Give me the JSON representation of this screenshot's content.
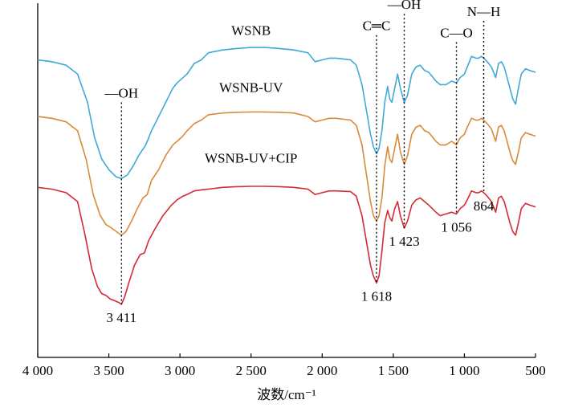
{
  "chart_data": {
    "type": "line",
    "title": "",
    "xlabel": "波数/cm⁻¹",
    "ylabel": "",
    "xlim": [
      4000,
      500
    ],
    "x_reversed": true,
    "ylim": [
      0,
      100
    ],
    "x_tick_values": [
      4000,
      3500,
      3000,
      2500,
      2000,
      1500,
      1000,
      500
    ],
    "x_tick_labels": [
      "4 000",
      "3 500",
      "3 000",
      "2 500",
      "2 000",
      "1 500",
      "1 000",
      "500"
    ],
    "grid": false,
    "series": [
      {
        "name": "WSNB",
        "color": "#3fa9d9",
        "points": [
          [
            4000,
            84
          ],
          [
            3900,
            83.5
          ],
          [
            3800,
            82.5
          ],
          [
            3720,
            80
          ],
          [
            3650,
            72
          ],
          [
            3600,
            62
          ],
          [
            3550,
            56
          ],
          [
            3500,
            53
          ],
          [
            3450,
            51
          ],
          [
            3411,
            50.5
          ],
          [
            3370,
            51.5
          ],
          [
            3330,
            54
          ],
          [
            3290,
            57
          ],
          [
            3240,
            60
          ],
          [
            3200,
            64
          ],
          [
            3150,
            68
          ],
          [
            3100,
            72
          ],
          [
            3050,
            76
          ],
          [
            3020,
            77.5
          ],
          [
            2950,
            80
          ],
          [
            2900,
            83
          ],
          [
            2850,
            84
          ],
          [
            2800,
            86
          ],
          [
            2700,
            86.8
          ],
          [
            2600,
            87.2
          ],
          [
            2500,
            87.5
          ],
          [
            2400,
            87.5
          ],
          [
            2300,
            87.2
          ],
          [
            2200,
            86.8
          ],
          [
            2100,
            86
          ],
          [
            2050,
            83.5
          ],
          [
            2000,
            84
          ],
          [
            1950,
            84.5
          ],
          [
            1900,
            84.5
          ],
          [
            1800,
            84
          ],
          [
            1760,
            82.5
          ],
          [
            1720,
            77
          ],
          [
            1690,
            70
          ],
          [
            1660,
            63
          ],
          [
            1640,
            59.5
          ],
          [
            1618,
            57.5
          ],
          [
            1600,
            59
          ],
          [
            1580,
            64
          ],
          [
            1560,
            72
          ],
          [
            1540,
            76.5
          ],
          [
            1525,
            73
          ],
          [
            1510,
            72
          ],
          [
            1490,
            76
          ],
          [
            1470,
            80
          ],
          [
            1450,
            76
          ],
          [
            1423,
            72
          ],
          [
            1400,
            74
          ],
          [
            1370,
            80
          ],
          [
            1340,
            82
          ],
          [
            1310,
            82.5
          ],
          [
            1280,
            81
          ],
          [
            1250,
            80.5
          ],
          [
            1200,
            78
          ],
          [
            1170,
            77
          ],
          [
            1130,
            77
          ],
          [
            1090,
            78
          ],
          [
            1056,
            77.5
          ],
          [
            1030,
            79
          ],
          [
            1000,
            80
          ],
          [
            980,
            82
          ],
          [
            950,
            85
          ],
          [
            920,
            84.5
          ],
          [
            900,
            84.5
          ],
          [
            880,
            85
          ],
          [
            864,
            84.5
          ],
          [
            840,
            83.5
          ],
          [
            810,
            82
          ],
          [
            780,
            79
          ],
          [
            760,
            83
          ],
          [
            740,
            83.5
          ],
          [
            720,
            82
          ],
          [
            700,
            79
          ],
          [
            680,
            76
          ],
          [
            660,
            73
          ],
          [
            640,
            71.5
          ],
          [
            620,
            76
          ],
          [
            600,
            80
          ],
          [
            570,
            81.5
          ],
          [
            540,
            81
          ],
          [
            500,
            80.5
          ]
        ]
      },
      {
        "name": "WSNB-UV",
        "color": "#d98a3a",
        "points": [
          [
            4000,
            68
          ],
          [
            3900,
            67.5
          ],
          [
            3800,
            66.5
          ],
          [
            3720,
            64
          ],
          [
            3660,
            56
          ],
          [
            3610,
            46
          ],
          [
            3560,
            40
          ],
          [
            3520,
            37.5
          ],
          [
            3480,
            36.5
          ],
          [
            3430,
            35
          ],
          [
            3411,
            34.5
          ],
          [
            3380,
            35.5
          ],
          [
            3340,
            38.5
          ],
          [
            3300,
            42
          ],
          [
            3260,
            45
          ],
          [
            3230,
            46
          ],
          [
            3200,
            50
          ],
          [
            3150,
            53
          ],
          [
            3100,
            57
          ],
          [
            3050,
            60
          ],
          [
            3020,
            61
          ],
          [
            2980,
            62.5
          ],
          [
            2950,
            64
          ],
          [
            2900,
            66
          ],
          [
            2850,
            67
          ],
          [
            2800,
            68.5
          ],
          [
            2700,
            69
          ],
          [
            2600,
            69.2
          ],
          [
            2500,
            69.3
          ],
          [
            2400,
            69.3
          ],
          [
            2300,
            69.2
          ],
          [
            2200,
            69
          ],
          [
            2100,
            68
          ],
          [
            2050,
            66.5
          ],
          [
            2000,
            67
          ],
          [
            1950,
            67.5
          ],
          [
            1900,
            67.5
          ],
          [
            1800,
            67
          ],
          [
            1760,
            65.5
          ],
          [
            1720,
            60
          ],
          [
            1690,
            52
          ],
          [
            1660,
            44
          ],
          [
            1640,
            40
          ],
          [
            1618,
            38.5
          ],
          [
            1600,
            40
          ],
          [
            1580,
            45
          ],
          [
            1560,
            54
          ],
          [
            1540,
            59.5
          ],
          [
            1525,
            56
          ],
          [
            1510,
            55
          ],
          [
            1490,
            59
          ],
          [
            1470,
            63
          ],
          [
            1450,
            58
          ],
          [
            1423,
            54.5
          ],
          [
            1400,
            57
          ],
          [
            1370,
            63
          ],
          [
            1340,
            65
          ],
          [
            1310,
            65.5
          ],
          [
            1280,
            64
          ],
          [
            1250,
            63.5
          ],
          [
            1200,
            61
          ],
          [
            1170,
            60
          ],
          [
            1130,
            60
          ],
          [
            1090,
            61
          ],
          [
            1056,
            60
          ],
          [
            1030,
            62
          ],
          [
            1000,
            63
          ],
          [
            980,
            65
          ],
          [
            950,
            67.5
          ],
          [
            920,
            67
          ],
          [
            900,
            67
          ],
          [
            880,
            67.5
          ],
          [
            864,
            67
          ],
          [
            840,
            66
          ],
          [
            810,
            64.5
          ],
          [
            780,
            61
          ],
          [
            760,
            65
          ],
          [
            740,
            65.5
          ],
          [
            720,
            64
          ],
          [
            700,
            61
          ],
          [
            680,
            58
          ],
          [
            660,
            55.5
          ],
          [
            640,
            54.5
          ],
          [
            620,
            58
          ],
          [
            600,
            62
          ],
          [
            570,
            63.5
          ],
          [
            540,
            63
          ],
          [
            500,
            62.5
          ]
        ]
      },
      {
        "name": "WSNB-UV+CIP",
        "color": "#d42a35",
        "points": [
          [
            4000,
            48
          ],
          [
            3900,
            47.5
          ],
          [
            3800,
            46.5
          ],
          [
            3720,
            44
          ],
          [
            3670,
            35
          ],
          [
            3620,
            25
          ],
          [
            3580,
            20
          ],
          [
            3550,
            18
          ],
          [
            3520,
            17.5
          ],
          [
            3490,
            16.5
          ],
          [
            3460,
            16
          ],
          [
            3430,
            15.5
          ],
          [
            3411,
            15
          ],
          [
            3390,
            17
          ],
          [
            3360,
            21
          ],
          [
            3320,
            26
          ],
          [
            3280,
            29
          ],
          [
            3250,
            29.5
          ],
          [
            3220,
            33
          ],
          [
            3180,
            36
          ],
          [
            3120,
            40
          ],
          [
            3060,
            43
          ],
          [
            3020,
            44.5
          ],
          [
            2980,
            45.5
          ],
          [
            2950,
            46
          ],
          [
            2900,
            47
          ],
          [
            2850,
            47.3
          ],
          [
            2800,
            47.5
          ],
          [
            2700,
            48
          ],
          [
            2600,
            48.2
          ],
          [
            2500,
            48.3
          ],
          [
            2400,
            48.3
          ],
          [
            2300,
            48.2
          ],
          [
            2200,
            48
          ],
          [
            2100,
            47.5
          ],
          [
            2050,
            46
          ],
          [
            2000,
            46.5
          ],
          [
            1950,
            47
          ],
          [
            1900,
            47
          ],
          [
            1800,
            46.8
          ],
          [
            1760,
            45.5
          ],
          [
            1720,
            40
          ],
          [
            1690,
            33
          ],
          [
            1660,
            26
          ],
          [
            1640,
            23
          ],
          [
            1618,
            21
          ],
          [
            1600,
            23
          ],
          [
            1580,
            30
          ],
          [
            1560,
            38
          ],
          [
            1540,
            41.5
          ],
          [
            1525,
            39.5
          ],
          [
            1510,
            38.5
          ],
          [
            1490,
            42
          ],
          [
            1470,
            44
          ],
          [
            1450,
            40
          ],
          [
            1423,
            36.5
          ],
          [
            1400,
            38.5
          ],
          [
            1370,
            43
          ],
          [
            1340,
            44.5
          ],
          [
            1310,
            45
          ],
          [
            1280,
            44
          ],
          [
            1250,
            43
          ],
          [
            1200,
            41
          ],
          [
            1170,
            40
          ],
          [
            1130,
            40.5
          ],
          [
            1090,
            41
          ],
          [
            1056,
            40.5
          ],
          [
            1030,
            42
          ],
          [
            1000,
            43
          ],
          [
            980,
            44.5
          ],
          [
            950,
            47
          ],
          [
            920,
            46.5
          ],
          [
            900,
            46.5
          ],
          [
            880,
            47
          ],
          [
            864,
            46.5
          ],
          [
            840,
            45.5
          ],
          [
            810,
            44
          ],
          [
            780,
            41
          ],
          [
            760,
            45
          ],
          [
            740,
            45.5
          ],
          [
            720,
            44
          ],
          [
            700,
            41
          ],
          [
            680,
            38
          ],
          [
            660,
            35.5
          ],
          [
            640,
            34.5
          ],
          [
            620,
            38
          ],
          [
            600,
            42
          ],
          [
            570,
            43.5
          ],
          [
            540,
            43
          ],
          [
            500,
            42.5
          ]
        ]
      }
    ],
    "series_labels": [
      {
        "text": "WSNB",
        "x": 2500,
        "y": 91
      },
      {
        "text": "WSNB-UV",
        "x": 2500,
        "y": 75
      },
      {
        "text": "WSNB-UV+CIP",
        "x": 2500,
        "y": 55
      }
    ],
    "annotations": [
      {
        "x": 3411,
        "label": "—OH",
        "num": "3 411",
        "top": 72,
        "bottom": 15
      },
      {
        "x": 1618,
        "label": "C═C",
        "num": "1 618",
        "top": 91,
        "bottom": 21
      },
      {
        "x": 1423,
        "label": "—OH",
        "num": "1 423",
        "top": 97,
        "bottom": 36.5
      },
      {
        "x": 1056,
        "label": "C—O",
        "num": "1 056",
        "top": 89,
        "bottom": 40.5
      },
      {
        "x": 864,
        "label": "N—H",
        "num": "864",
        "top": 95,
        "bottom": 46.5
      }
    ]
  }
}
